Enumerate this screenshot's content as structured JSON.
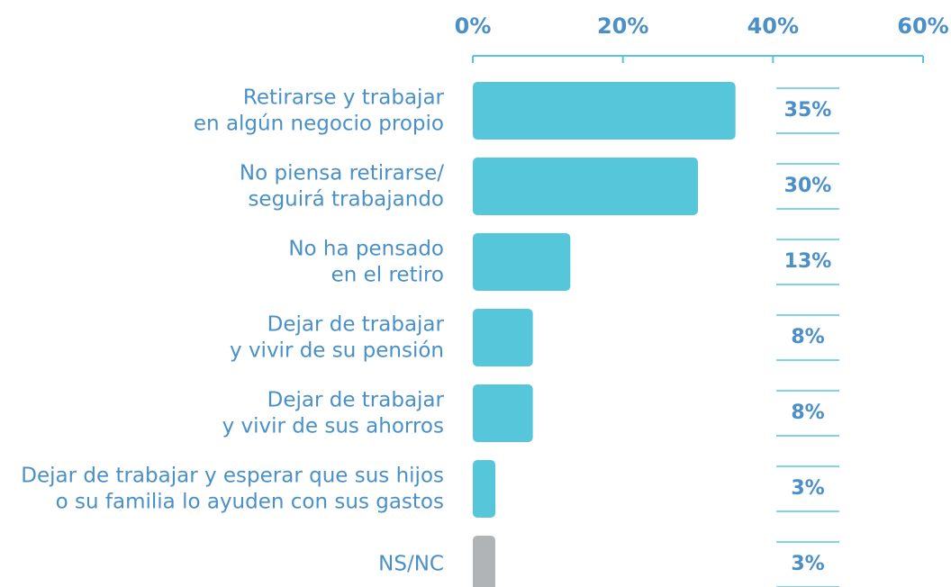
{
  "chart_data": {
    "type": "bar",
    "orientation": "horizontal",
    "categories": [
      "Retirarse y trabajar\nen algún negocio propio",
      "No piensa retirarse/\nseguirá trabajando",
      "No ha pensado\nen el retiro",
      "Dejar de trabajar\ny vivir de su pensión",
      "Dejar de trabajar\ny vivir de sus ahorros",
      "Dejar de trabajar y esperar que sus hijos\no su familia lo ayuden con sus gastos",
      "NS/NC"
    ],
    "values": [
      35,
      30,
      13,
      8,
      8,
      3,
      3
    ],
    "value_labels": [
      "35%",
      "30%",
      "13%",
      "8%",
      "8%",
      "3%",
      "3%"
    ],
    "colors": [
      "#56c6db",
      "#56c6db",
      "#56c6db",
      "#56c6db",
      "#56c6db",
      "#56c6db",
      "#b1b4b6"
    ],
    "xlim": [
      0,
      60
    ],
    "xticks": [
      {
        "value": 0,
        "label": "0%"
      },
      {
        "value": 20,
        "label": "20%"
      },
      {
        "value": 40,
        "label": "40%"
      },
      {
        "value": 60,
        "label": "60%"
      }
    ]
  }
}
